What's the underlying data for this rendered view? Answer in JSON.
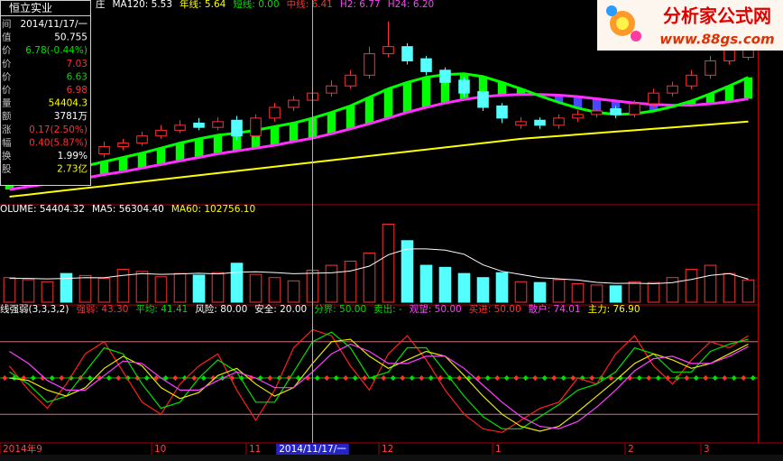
{
  "info_panel": {
    "title": "恒立实业",
    "rows": [
      {
        "label": "间",
        "value": "2014/11/17/一",
        "color": "#ffffff"
      },
      {
        "label": "值",
        "value": "50.755",
        "color": "#ffffff"
      },
      {
        "label": "价",
        "value": "6.78(-0.44%)",
        "color": "#00e000"
      },
      {
        "label": "价",
        "value": "7.03",
        "color": "#ff3030"
      },
      {
        "label": "价",
        "value": "6.63",
        "color": "#00e000"
      },
      {
        "label": "价",
        "value": "6.98",
        "color": "#ff3030"
      },
      {
        "label": "量",
        "value": "54404.3",
        "color": "#ffff00"
      },
      {
        "label": "额",
        "value": "3781万",
        "color": "#ffffff"
      },
      {
        "label": "涨",
        "value": "0.17(2.50%)",
        "color": "#ff3030"
      },
      {
        "label": "幅",
        "value": "0.40(5.87%)",
        "color": "#ff3030"
      },
      {
        "label": "换",
        "value": "1.99%",
        "color": "#ffffff"
      },
      {
        "label": "股",
        "value": "2.73亿",
        "color": "#ffff00"
      }
    ]
  },
  "logo": {
    "name": "分析家公式网",
    "url": "www.88gs.com"
  },
  "chart_data": [
    {
      "type": "candlestick",
      "header": [
        {
          "text": "庄",
          "color": "#ffffff"
        },
        {
          "text": "MA120: 5.53",
          "color": "#ffffff"
        },
        {
          "text": "年线: 5.64",
          "color": "#ffff00"
        },
        {
          "text": "短线: 0.00",
          "color": "#00e000"
        },
        {
          "text": "中线: 6.41",
          "color": "#ff3030"
        },
        {
          "text": "H2: 6.77",
          "color": "#ff40ff"
        },
        {
          "text": "H24: 6.20",
          "color": "#ff40ff"
        }
      ],
      "categories": [
        "2014年9",
        null,
        null,
        null,
        null,
        null,
        null,
        null,
        "10",
        null,
        null,
        null,
        null,
        "11",
        null,
        null,
        "2014/11/17/一",
        null,
        null,
        null,
        "12",
        null,
        null,
        null,
        null,
        null,
        "1",
        null,
        null,
        null,
        null,
        null,
        null,
        "2",
        null,
        null,
        null,
        "3",
        null,
        null
      ],
      "open": [
        5.05,
        5.15,
        5.25,
        5.36,
        5.3,
        5.45,
        5.55,
        5.6,
        5.7,
        5.78,
        5.88,
        5.82,
        5.92,
        5.7,
        5.95,
        6.1,
        6.2,
        6.3,
        6.4,
        6.55,
        6.85,
        6.95,
        6.78,
        6.62,
        6.48,
        6.32,
        6.12,
        5.85,
        5.92,
        5.85,
        5.95,
        6.0,
        6.08,
        6.0,
        6.15,
        6.3,
        6.4,
        6.55,
        6.75,
        6.8
      ],
      "high": [
        5.2,
        5.3,
        5.4,
        5.42,
        5.5,
        5.62,
        5.66,
        5.76,
        5.85,
        5.92,
        5.95,
        5.96,
        5.98,
        6.0,
        6.16,
        6.26,
        6.36,
        6.48,
        6.62,
        6.95,
        7.3,
        7.0,
        6.82,
        6.66,
        6.52,
        6.36,
        6.16,
        5.96,
        5.96,
        6.0,
        6.06,
        6.1,
        6.12,
        6.2,
        6.36,
        6.46,
        6.62,
        6.82,
        6.98,
        7.3
      ],
      "low": [
        5.0,
        5.1,
        5.2,
        5.26,
        5.26,
        5.4,
        5.5,
        5.56,
        5.66,
        5.74,
        5.78,
        5.78,
        5.64,
        5.64,
        5.9,
        6.05,
        6.15,
        6.25,
        6.36,
        6.5,
        6.8,
        6.7,
        6.55,
        6.4,
        6.25,
        6.05,
        5.88,
        5.8,
        5.8,
        5.8,
        5.9,
        5.96,
        5.95,
        5.96,
        6.1,
        6.25,
        6.35,
        6.5,
        6.7,
        6.76
      ],
      "close": [
        5.15,
        5.25,
        5.35,
        5.3,
        5.45,
        5.55,
        5.6,
        5.7,
        5.78,
        5.85,
        5.82,
        5.9,
        5.7,
        5.95,
        6.1,
        6.2,
        6.3,
        6.4,
        6.55,
        6.85,
        6.95,
        6.75,
        6.6,
        6.45,
        6.3,
        6.1,
        5.95,
        5.9,
        5.85,
        5.95,
        6.0,
        6.05,
        6.0,
        6.15,
        6.3,
        6.4,
        6.55,
        6.75,
        6.9,
        6.98
      ],
      "up_color": "#ff3232",
      "down_color": "#54ffff",
      "series": [
        {
          "color": "#00ff00",
          "values": [
            5.05,
            5.1,
            5.17,
            5.22,
            5.28,
            5.34,
            5.4,
            5.46,
            5.53,
            5.6,
            5.66,
            5.71,
            5.74,
            5.78,
            5.83,
            5.88,
            5.95,
            6.03,
            6.12,
            6.24,
            6.36,
            6.45,
            6.52,
            6.56,
            6.57,
            6.53,
            6.45,
            6.36,
            6.26,
            6.17,
            6.09,
            6.03,
            6.0,
            6.01,
            6.05,
            6.11,
            6.19,
            6.29,
            6.4,
            6.52
          ]
        },
        {
          "color": "#ff30ff",
          "values": [
            4.95,
            4.99,
            5.03,
            5.07,
            5.11,
            5.16,
            5.2,
            5.25,
            5.3,
            5.35,
            5.4,
            5.45,
            5.49,
            5.53,
            5.57,
            5.62,
            5.67,
            5.73,
            5.8,
            5.87,
            5.95,
            6.03,
            6.1,
            6.16,
            6.21,
            6.25,
            6.27,
            6.28,
            6.28,
            6.27,
            6.25,
            6.22,
            6.19,
            6.16,
            6.14,
            6.13,
            6.13,
            6.15,
            6.18,
            6.22
          ]
        },
        {
          "color": "#ffff00",
          "values": [
            4.85,
            4.88,
            4.91,
            4.94,
            4.97,
            5.0,
            5.03,
            5.06,
            5.09,
            5.12,
            5.15,
            5.18,
            5.21,
            5.24,
            5.27,
            5.3,
            5.33,
            5.36,
            5.39,
            5.42,
            5.45,
            5.48,
            5.51,
            5.54,
            5.57,
            5.6,
            5.63,
            5.66,
            5.68,
            5.7,
            5.72,
            5.74,
            5.76,
            5.78,
            5.8,
            5.82,
            5.84,
            5.86,
            5.88,
            5.9
          ]
        }
      ],
      "ribbon_colors": [
        "#00ff00",
        "#4848ff"
      ],
      "ylim": [
        4.8,
        7.4
      ]
    },
    {
      "type": "bar",
      "header": [
        {
          "text": "OLUME: 54404.32",
          "color": "#ffffff"
        },
        {
          "text": "MA5: 56304.40",
          "color": "#ffffff"
        },
        {
          "text": "MA60: 102756.10",
          "color": "#ffff00"
        }
      ],
      "values": [
        60000,
        55000,
        50000,
        70000,
        65000,
        58000,
        80000,
        75000,
        62000,
        70000,
        66000,
        72000,
        95000,
        68000,
        60000,
        52000,
        78000,
        90000,
        100000,
        120000,
        190000,
        150000,
        90000,
        85000,
        70000,
        60000,
        72000,
        50000,
        48000,
        55000,
        45000,
        42000,
        40000,
        50000,
        48000,
        60000,
        80000,
        90000,
        70000,
        54404.32
      ],
      "series": [
        {
          "color": "#ffffff",
          "values": [
            58000,
            58000,
            57000,
            58000,
            60000,
            59600,
            65600,
            69600,
            68000,
            69000,
            70600,
            69000,
            73000,
            74200,
            72200,
            69400,
            70600,
            71600,
            76000,
            88000,
            115600,
            130000,
            130000,
            127000,
            117000,
            91000,
            75400,
            67400,
            60000,
            57000,
            54000,
            48400,
            46000,
            46400,
            45000,
            48000,
            55600,
            65600,
            69600,
            56304.4
          ]
        }
      ],
      "ylim": [
        0,
        200000
      ]
    },
    {
      "type": "line",
      "header": [
        {
          "text": "线强弱(3,3,3,2)",
          "color": "#ffffff"
        },
        {
          "text": "强弱: 43.30",
          "color": "#ff3030"
        },
        {
          "text": "平均: 41.41",
          "color": "#00e000"
        },
        {
          "text": "风险: 80.00",
          "color": "#ffffff"
        },
        {
          "text": "安全: 20.00",
          "color": "#ffffff"
        },
        {
          "text": "分界: 50.00",
          "color": "#00e000"
        },
        {
          "text": "卖出: -",
          "color": "#00e000"
        },
        {
          "text": "观望: 50.00",
          "color": "#ff40ff"
        },
        {
          "text": "买进: 50.00",
          "color": "#ff3030"
        },
        {
          "text": "散户: 74.01",
          "color": "#ff40ff"
        },
        {
          "text": "主力: 76.90",
          "color": "#ffff00"
        }
      ],
      "series": [
        {
          "color": "#ff2020",
          "values": [
            60,
            40,
            25,
            45,
            70,
            80,
            55,
            30,
            20,
            45,
            60,
            70,
            40,
            15,
            40,
            75,
            90,
            85,
            60,
            40,
            70,
            85,
            65,
            40,
            20,
            8,
            5,
            15,
            25,
            30,
            50,
            45,
            70,
            85,
            60,
            45,
            65,
            80,
            75,
            85
          ]
        },
        {
          "color": "#00e000",
          "values": [
            55,
            45,
            30,
            35,
            55,
            75,
            70,
            45,
            25,
            30,
            50,
            65,
            55,
            30,
            30,
            55,
            80,
            88,
            75,
            50,
            55,
            75,
            75,
            55,
            35,
            18,
            8,
            8,
            18,
            28,
            40,
            45,
            55,
            75,
            70,
            55,
            55,
            72,
            78,
            82
          ]
        },
        {
          "color": "#e8e800",
          "values": [
            50,
            48,
            40,
            35,
            42,
            58,
            68,
            60,
            42,
            33,
            38,
            52,
            58,
            45,
            35,
            42,
            62,
            80,
            82,
            68,
            58,
            65,
            72,
            68,
            52,
            35,
            20,
            10,
            6,
            10,
            22,
            35,
            48,
            62,
            70,
            65,
            58,
            62,
            70,
            78
          ]
        },
        {
          "color": "#ff40ff",
          "values": [
            72,
            62,
            48,
            40,
            40,
            52,
            64,
            62,
            50,
            40,
            40,
            48,
            55,
            50,
            42,
            42,
            55,
            70,
            78,
            72,
            62,
            62,
            68,
            68,
            58,
            44,
            30,
            18,
            10,
            8,
            14,
            26,
            40,
            56,
            66,
            68,
            62,
            62,
            68,
            76
          ]
        }
      ],
      "levels": [
        {
          "value": 80,
          "color": "#c87878"
        },
        {
          "value": 20,
          "color": "#c87878"
        },
        {
          "value": 50,
          "color": "#00c000",
          "marker_colors": [
            "#ff3030",
            "#00e000"
          ]
        }
      ],
      "ylim": [
        0,
        100
      ]
    }
  ]
}
